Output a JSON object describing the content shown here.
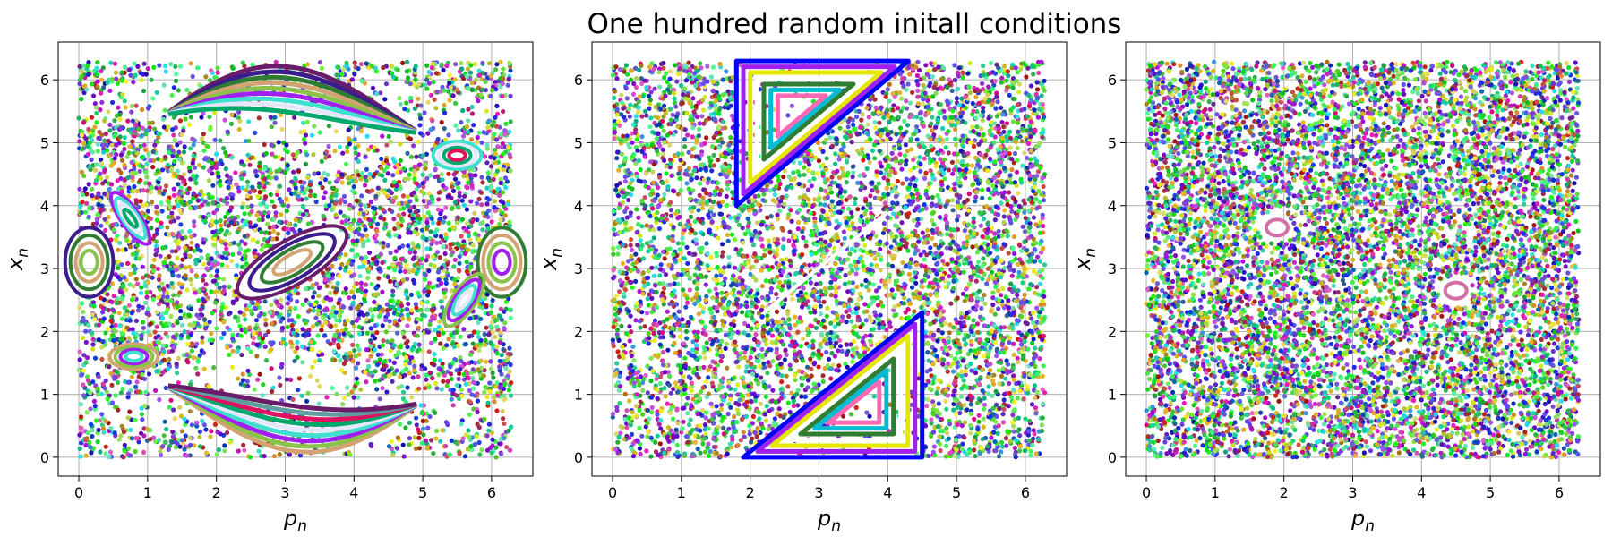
{
  "figure": {
    "title": "One hundred random initall conditions"
  },
  "colors": {
    "axes": "#000000",
    "grid": "#b0b0b0",
    "background": "#ffffff"
  },
  "chart_data": [
    {
      "type": "scatter",
      "panel": "left",
      "xlabel": "p_n",
      "ylabel": "x_n",
      "xlim": [
        -0.3,
        6.6
      ],
      "ylim": [
        -0.3,
        6.6
      ],
      "xticks": [
        0,
        1,
        2,
        3,
        4,
        5,
        6
      ],
      "yticks": [
        0,
        1,
        2,
        3,
        4,
        5,
        6
      ],
      "grid": true,
      "series_count": 100,
      "description_points": "regular invariant curves and resonance islands mixed with chaotic layers",
      "structures": [
        {
          "kind": "island",
          "center": [
            3.1,
            3.1
          ],
          "rx": 0.9,
          "ry": 0.35,
          "tilt": 30
        },
        {
          "kind": "island",
          "center": [
            0.15,
            3.1
          ],
          "rx": 0.35,
          "ry": 0.55,
          "tilt": 0
        },
        {
          "kind": "island",
          "center": [
            6.15,
            3.1
          ],
          "rx": 0.35,
          "ry": 0.55,
          "tilt": 0
        },
        {
          "kind": "island",
          "center": [
            0.8,
            1.6
          ],
          "rx": 0.35,
          "ry": 0.2,
          "tilt": 0
        },
        {
          "kind": "island",
          "center": [
            5.6,
            2.5
          ],
          "rx": 0.45,
          "ry": 0.18,
          "tilt": 55
        },
        {
          "kind": "island",
          "center": [
            0.75,
            3.8
          ],
          "rx": 0.45,
          "ry": 0.15,
          "tilt": -55
        },
        {
          "kind": "island",
          "center": [
            5.5,
            4.8
          ],
          "rx": 0.35,
          "ry": 0.22,
          "tilt": 0
        },
        {
          "kind": "band_upper",
          "center": [
            3.1,
            5.6
          ]
        },
        {
          "kind": "band_lower",
          "center": [
            3.1,
            0.7
          ]
        }
      ]
    },
    {
      "type": "scatter",
      "panel": "middle",
      "xlabel": "p_n",
      "ylabel": "x_n",
      "xlim": [
        -0.3,
        6.6
      ],
      "ylim": [
        -0.3,
        6.6
      ],
      "xticks": [
        0,
        1,
        2,
        3,
        4,
        5,
        6
      ],
      "yticks": [
        0,
        1,
        2,
        3,
        4,
        5,
        6
      ],
      "grid": true,
      "series_count": 100,
      "structures": [
        {
          "kind": "triangle_island",
          "vertices": [
            [
              1.8,
              6.3
            ],
            [
              4.3,
              6.3
            ],
            [
              1.8,
              4.0
            ]
          ]
        },
        {
          "kind": "triangle_island",
          "vertices": [
            [
              1.9,
              0.0
            ],
            [
              4.5,
              0.0
            ],
            [
              4.5,
              2.3
            ]
          ]
        },
        {
          "kind": "thin_line",
          "from": [
            2.2,
            2.3
          ],
          "to": [
            4.0,
            3.9
          ]
        }
      ]
    },
    {
      "type": "scatter",
      "panel": "right",
      "xlabel": "p_n",
      "ylabel": "x_n",
      "xlim": [
        -0.3,
        6.6
      ],
      "ylim": [
        -0.3,
        6.6
      ],
      "xticks": [
        0,
        1,
        2,
        3,
        4,
        5,
        6
      ],
      "yticks": [
        0,
        1,
        2,
        3,
        4,
        5,
        6
      ],
      "grid": true,
      "series_count": 100,
      "structures": [
        {
          "kind": "small_island",
          "center": [
            1.9,
            3.65
          ]
        },
        {
          "kind": "small_island",
          "center": [
            4.5,
            2.65
          ]
        }
      ]
    }
  ]
}
